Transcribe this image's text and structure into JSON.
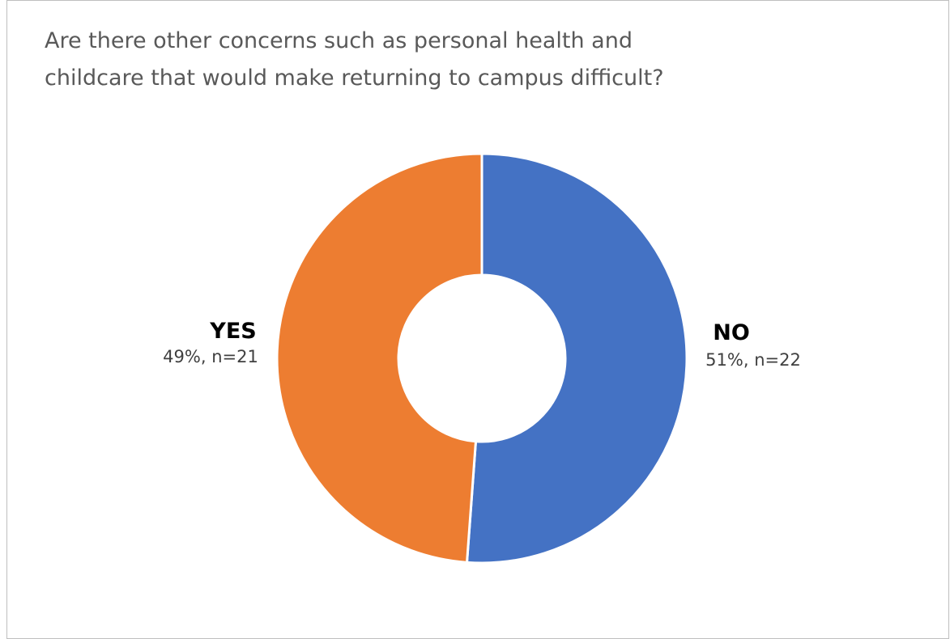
{
  "chart_data": {
    "type": "pie",
    "title_lines": [
      "Are there other concerns such as personal health and",
      "childcare that would make returning to campus difficult?"
    ],
    "slices": [
      {
        "label": "NO",
        "value": 22,
        "percent_label": "51%, n=22",
        "color": "#4472C4"
      },
      {
        "label": "YES",
        "value": 21,
        "percent_label": "49%, n=21",
        "color": "#ED7D31"
      }
    ],
    "start_angle_deg": 0,
    "direction": "clockwise",
    "legend": "none"
  }
}
